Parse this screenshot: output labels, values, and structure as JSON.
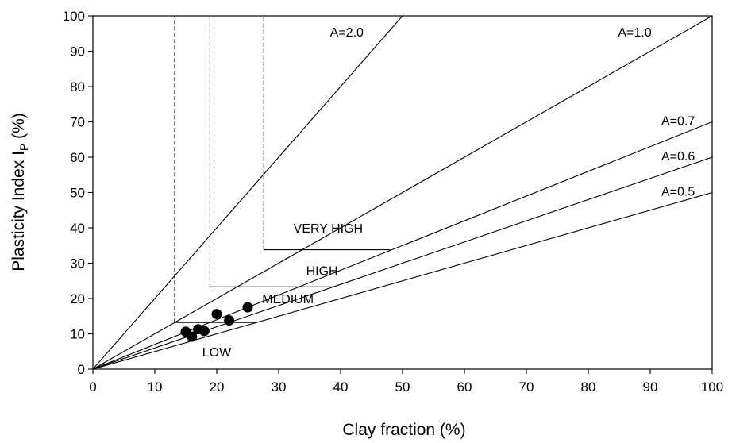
{
  "chart_data": {
    "type": "scatter",
    "title": "",
    "xlabel": "Clay fraction (%)",
    "ylabel": {
      "main": "Plasticity Index I",
      "sub": "P",
      "tail": " (%)"
    },
    "xlim": [
      0,
      100
    ],
    "ylim": [
      0,
      100
    ],
    "xticks": [
      0,
      10,
      20,
      30,
      40,
      50,
      60,
      70,
      80,
      90,
      100
    ],
    "yticks": [
      0,
      10,
      20,
      30,
      40,
      50,
      60,
      70,
      80,
      90,
      100
    ],
    "grid": false,
    "legend": "none",
    "activity_lines": [
      {
        "label": "A=2.0",
        "activity": 2.0
      },
      {
        "label": "A=1.0",
        "activity": 1.0
      },
      {
        "label": "A=0.7",
        "activity": 0.7
      },
      {
        "label": "A=0.6",
        "activity": 0.6
      },
      {
        "label": "A=0.5",
        "activity": 0.5
      }
    ],
    "zone_boundaries": [
      {
        "x_start": 13.2,
        "x_end": 26.5,
        "y": 13.2
      },
      {
        "x_start": 18.9,
        "x_end": 39.0,
        "y": 23.3
      },
      {
        "x_start": 27.6,
        "x_end": 48.0,
        "y": 33.8
      }
    ],
    "dashed_verticals": [
      {
        "x": 13.2,
        "y_from": 13.2,
        "y_to": 100
      },
      {
        "x": 18.9,
        "y_from": 23.3,
        "y_to": 100
      },
      {
        "x": 27.6,
        "y_from": 33.8,
        "y_to": 100
      }
    ],
    "zone_labels": [
      {
        "text": "LOW",
        "x": 20.0,
        "y": 5.0
      },
      {
        "text": "MEDIUM",
        "x": 31.5,
        "y": 20.0
      },
      {
        "text": "HIGH",
        "x": 37.0,
        "y": 28.0
      },
      {
        "text": "VERY HIGH",
        "x": 38.0,
        "y": 40.0
      }
    ],
    "points": [
      {
        "x": 15.0,
        "y": 10.6
      },
      {
        "x": 16.0,
        "y": 9.2
      },
      {
        "x": 17.0,
        "y": 11.3
      },
      {
        "x": 18.0,
        "y": 10.8
      },
      {
        "x": 20.0,
        "y": 15.6
      },
      {
        "x": 22.0,
        "y": 13.8
      },
      {
        "x": 25.0,
        "y": 17.5
      }
    ],
    "colors": {
      "line": "#000000",
      "marker": "#000000",
      "background": "#ffffff"
    }
  }
}
